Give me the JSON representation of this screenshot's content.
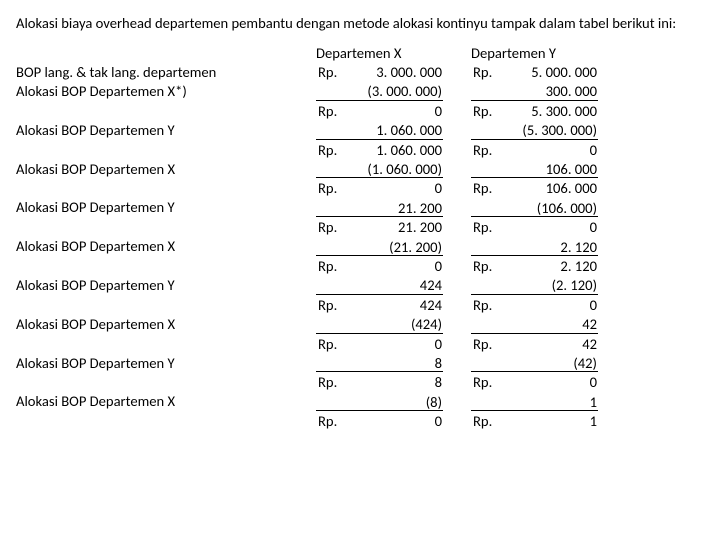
{
  "intro": "Alokasi biaya overhead departemen pembantu dengan metode alokasi kontinyu tampak dalam tabel berikut ini:",
  "labels": [
    "BOP lang. & tak lang. departemen",
    "Alokasi BOP Departemen X*)",
    "",
    "Alokasi BOP Departemen Y",
    "",
    "Alokasi BOP Departemen X",
    "",
    "Alokasi BOP Departemen Y",
    "",
    "Alokasi BOP Departemen X",
    "",
    "Alokasi BOP Departemen Y",
    "",
    "Alokasi BOP Departemen X",
    "",
    "Alokasi BOP Departemen Y",
    "",
    "Alokasi BOP Departemen X",
    ""
  ],
  "colX": {
    "header": "Departemen X",
    "rows": [
      {
        "cur": "Rp.",
        "num": "3. 000. 000",
        "ul": false
      },
      {
        "cur": "",
        "num": "(3. 000. 000)",
        "ul": true
      },
      {
        "cur": "Rp.",
        "num": "0",
        "ul": false
      },
      {
        "cur": "",
        "num": "1. 060. 000",
        "ul": true
      },
      {
        "cur": "Rp.",
        "num": "1. 060. 000",
        "ul": false
      },
      {
        "cur": "",
        "num": "(1. 060. 000)",
        "ul": true
      },
      {
        "cur": "Rp.",
        "num": "0",
        "ul": false
      },
      {
        "cur": "",
        "num": "21. 200",
        "ul": true
      },
      {
        "cur": "Rp.",
        "num": "21. 200",
        "ul": false
      },
      {
        "cur": "",
        "num": "(21. 200)",
        "ul": true
      },
      {
        "cur": "Rp.",
        "num": "0",
        "ul": false
      },
      {
        "cur": "",
        "num": "424",
        "ul": true
      },
      {
        "cur": "Rp.",
        "num": "424",
        "ul": false
      },
      {
        "cur": "",
        "num": "(424)",
        "ul": true
      },
      {
        "cur": "Rp.",
        "num": "0",
        "ul": false
      },
      {
        "cur": "",
        "num": "8",
        "ul": true
      },
      {
        "cur": "Rp.",
        "num": "8",
        "ul": false
      },
      {
        "cur": "",
        "num": "(8)",
        "ul": true
      },
      {
        "cur": "Rp.",
        "num": "0",
        "ul": false
      }
    ]
  },
  "colY": {
    "header": "Departemen Y",
    "rows": [
      {
        "cur": "Rp.",
        "num": "5. 000. 000",
        "ul": false
      },
      {
        "cur": "",
        "num": "300. 000",
        "ul": true
      },
      {
        "cur": "Rp.",
        "num": "5. 300. 000",
        "ul": false
      },
      {
        "cur": "",
        "num": "(5. 300. 000)",
        "ul": true
      },
      {
        "cur": "Rp.",
        "num": "0",
        "ul": false
      },
      {
        "cur": "",
        "num": "106. 000",
        "ul": true
      },
      {
        "cur": "Rp.",
        "num": "106. 000",
        "ul": false
      },
      {
        "cur": "",
        "num": "(106. 000)",
        "ul": true
      },
      {
        "cur": "Rp.",
        "num": "0",
        "ul": false
      },
      {
        "cur": "",
        "num": "2. 120",
        "ul": true
      },
      {
        "cur": "Rp.",
        "num": "2. 120",
        "ul": false
      },
      {
        "cur": "",
        "num": "(2. 120)",
        "ul": true
      },
      {
        "cur": "Rp.",
        "num": "0",
        "ul": false
      },
      {
        "cur": "",
        "num": "42",
        "ul": true
      },
      {
        "cur": "Rp.",
        "num": "42",
        "ul": false
      },
      {
        "cur": "",
        "num": "(42)",
        "ul": true
      },
      {
        "cur": "Rp.",
        "num": "0",
        "ul": false
      },
      {
        "cur": "",
        "num": "1",
        "ul": true
      },
      {
        "cur": "Rp.",
        "num": "1",
        "ul": false
      }
    ]
  }
}
